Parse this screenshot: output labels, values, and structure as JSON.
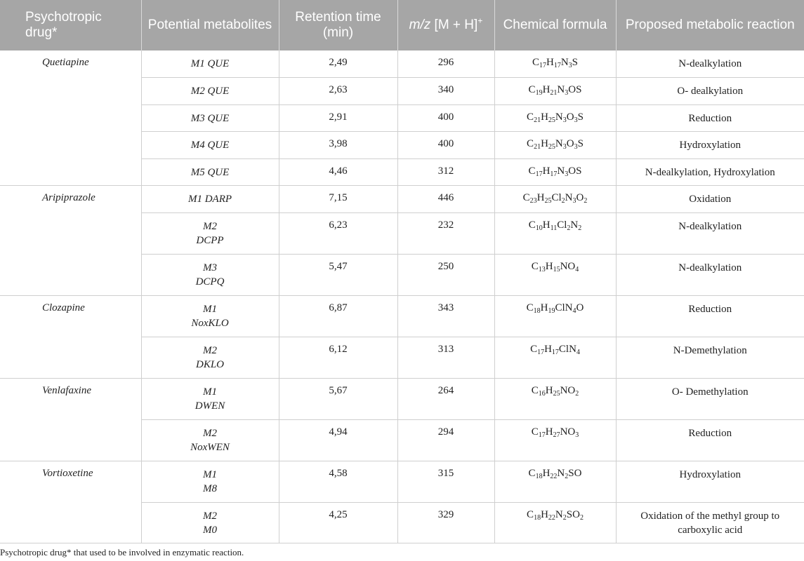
{
  "headers": {
    "drug": "Psychotropic drug*",
    "metabolites": "Potential metabolites",
    "retention": "Retention time (min)",
    "mz_italic": "m/z",
    "mz_rest": " [M + H]",
    "mz_sup": "+",
    "formula": "Chemical formula",
    "reaction": "Proposed metabolic reaction"
  },
  "groups": [
    {
      "drug": "Quetiapine",
      "rows": [
        {
          "met": "M1 QUE",
          "rt": "2,49",
          "mz": "296",
          "formula": [
            [
              "C",
              "17"
            ],
            [
              "H",
              "17"
            ],
            [
              "N",
              "3"
            ],
            [
              "S",
              ""
            ]
          ],
          "reaction": "N-dealkylation",
          "h": 38
        },
        {
          "met": "M2 QUE",
          "rt": "2,63",
          "mz": "340",
          "formula": [
            [
              "C",
              "19"
            ],
            [
              "H",
              "21"
            ],
            [
              "N",
              "3"
            ],
            [
              "OS",
              ""
            ]
          ],
          "reaction": "O- dealkylation",
          "h": 39
        },
        {
          "met": "M3 QUE",
          "rt": "2,91",
          "mz": "400",
          "formula": [
            [
              "C",
              "21"
            ],
            [
              "H",
              "25"
            ],
            [
              "N",
              "3"
            ],
            [
              "O",
              "3"
            ],
            [
              "S",
              ""
            ]
          ],
          "reaction": "Reduction",
          "h": 38
        },
        {
          "met": "M4 QUE",
          "rt": "3,98",
          "mz": "400",
          "formula": [
            [
              "C",
              "21"
            ],
            [
              "H",
              "25"
            ],
            [
              "N",
              "3"
            ],
            [
              "O",
              "3"
            ],
            [
              "S",
              ""
            ]
          ],
          "reaction": "Hydroxylation",
          "h": 39
        },
        {
          "met": "M5 QUE",
          "rt": "4,46",
          "mz": "312",
          "formula": [
            [
              "C",
              "17"
            ],
            [
              "H",
              "17"
            ],
            [
              "N",
              "3"
            ],
            [
              "OS",
              ""
            ]
          ],
          "reaction": "N-dealkylation, Hydroxylation",
          "h": 38
        }
      ]
    },
    {
      "drug": "Aripiprazole",
      "rows": [
        {
          "met": "M1 DARP",
          "rt": "7,15",
          "mz": "446",
          "formula": [
            [
              "C",
              "23"
            ],
            [
              "H",
              "25"
            ],
            [
              "Cl",
              "2"
            ],
            [
              "N",
              "3"
            ],
            [
              "O",
              "2"
            ]
          ],
          "reaction": "Oxidation",
          "h": 39
        },
        {
          "met": "M2\nDCPP",
          "rt": "6,23",
          "mz": "232",
          "formula": [
            [
              "C",
              "10"
            ],
            [
              "H",
              "11"
            ],
            [
              "Cl",
              "2"
            ],
            [
              "N",
              "2"
            ]
          ],
          "reaction": "N-dealkylation",
          "h": 59
        },
        {
          "met": "M3\nDCPQ",
          "rt": "5,47",
          "mz": "250",
          "formula": [
            [
              "C",
              "13"
            ],
            [
              "H",
              "15"
            ],
            [
              "NO",
              "4"
            ]
          ],
          "reaction": "N-dealkylation",
          "h": 59
        }
      ]
    },
    {
      "drug": "Clozapine",
      "rows": [
        {
          "met": "M1\nNoxKLO",
          "rt": "6,87",
          "mz": "343",
          "formula": [
            [
              "C",
              "18"
            ],
            [
              "H",
              "19"
            ],
            [
              "ClN",
              "4"
            ],
            [
              "O",
              ""
            ]
          ],
          "reaction": "Reduction",
          "h": 59
        },
        {
          "met": "M2\nDKLO",
          "rt": "6,12",
          "mz": "313",
          "formula": [
            [
              "C",
              "17"
            ],
            [
              "H",
              "17"
            ],
            [
              "ClN",
              "4"
            ]
          ],
          "reaction": "N-Demethylation",
          "h": 59
        }
      ]
    },
    {
      "drug": "Venlafaxine",
      "rows": [
        {
          "met": "M1\nDWEN",
          "rt": "5,67",
          "mz": "264",
          "formula": [
            [
              "C",
              "16"
            ],
            [
              "H",
              "25"
            ],
            [
              "NO",
              "2"
            ]
          ],
          "reaction": "O- Demethylation",
          "h": 59
        },
        {
          "met": "M2\nNoxWEN",
          "rt": "4,94",
          "mz": "294",
          "formula": [
            [
              "C",
              "17"
            ],
            [
              "H",
              "27"
            ],
            [
              "NO",
              "3"
            ]
          ],
          "reaction": "Reduction",
          "h": 59
        }
      ]
    },
    {
      "drug": "Vortioxetine",
      "rows": [
        {
          "met": "M1\nM8",
          "rt": "4,58",
          "mz": "315",
          "formula": [
            [
              "C",
              "18"
            ],
            [
              "H",
              "22"
            ],
            [
              "N",
              "2"
            ],
            [
              "SO",
              ""
            ]
          ],
          "reaction": "Hydroxylation",
          "h": 59
        },
        {
          "met": "M2\nM0",
          "rt": "4,25",
          "mz": "329",
          "formula": [
            [
              "C",
              "18"
            ],
            [
              "H",
              "22"
            ],
            [
              "N",
              "2"
            ],
            [
              "SO",
              "2"
            ]
          ],
          "reaction": "Oxidation of the methyl group to carboxylic acid",
          "h": 58
        }
      ]
    }
  ],
  "footnote": "Psychotropic drug* that used to be involved in enzymatic reaction."
}
